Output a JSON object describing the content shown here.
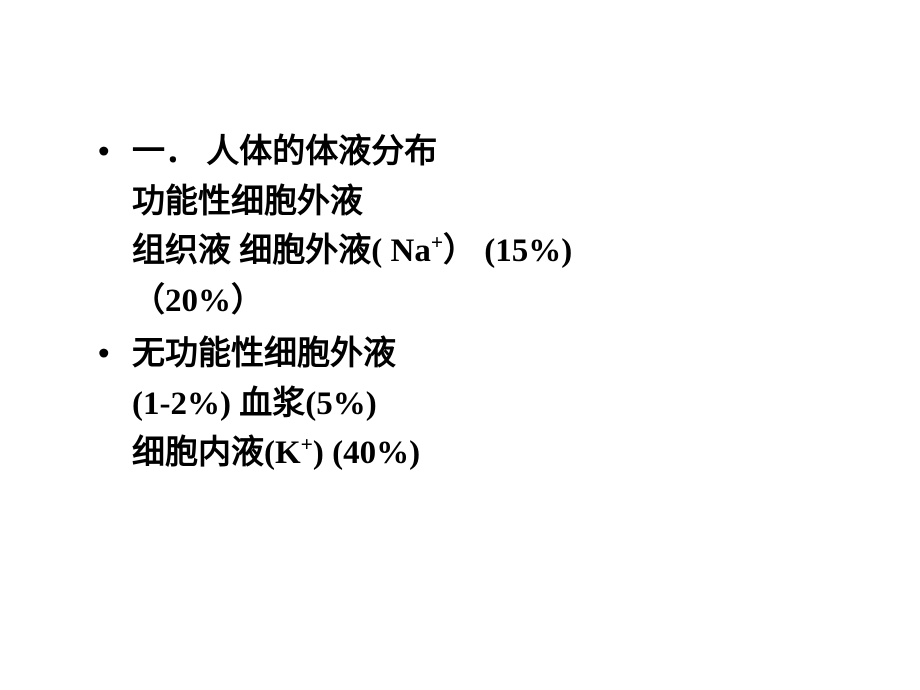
{
  "slide": {
    "bullets": [
      {
        "lines": [
          "一．  人体的体液分布",
          " 功能性细胞外液",
          " 组织液   细胞外液( Na⁺）    (15%)",
          "（20%）"
        ]
      },
      {
        "lines": [
          "无功能性细胞外液",
          "(1-2%)                                  血浆(5%)",
          "细胞内液(K⁺)       (40%)"
        ]
      }
    ],
    "style": {
      "font_size_pt": 25,
      "font_weight": "bold",
      "text_color": "#000000",
      "background_color": "#ffffff",
      "bullet_char": "•",
      "line_height": 1.5
    }
  }
}
